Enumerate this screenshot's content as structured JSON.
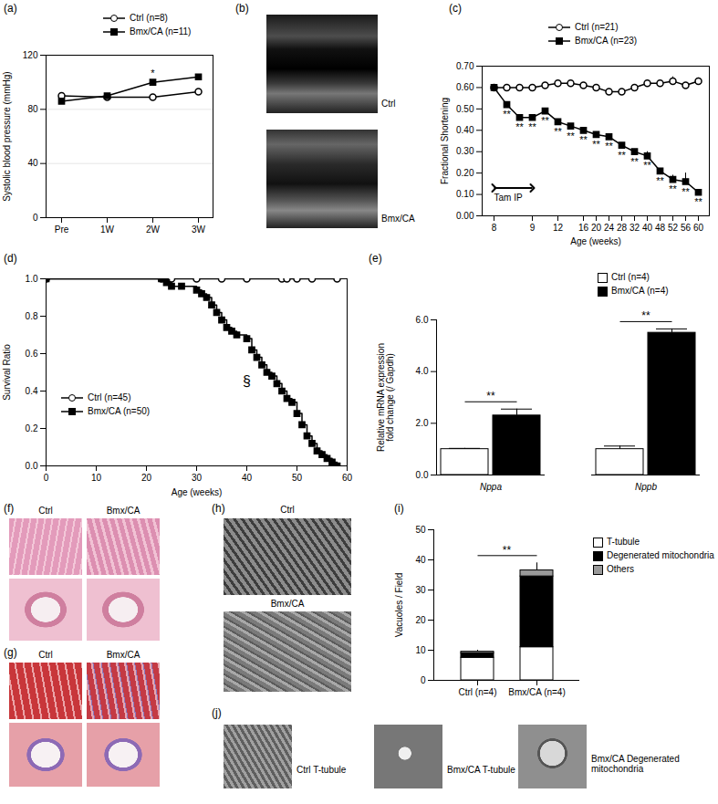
{
  "chart_data": [
    {
      "panel": "(a)",
      "type": "line",
      "y_label": "Systolic blood pressure (mmHg)",
      "categories": [
        "Pre",
        "1W",
        "2W",
        "3W"
      ],
      "ylim": [
        0,
        120
      ],
      "yticks": [
        0,
        40,
        80,
        120
      ],
      "grid": true,
      "legend": "top",
      "series": [
        {
          "name": "Ctrl (n=8)",
          "color": "#000000",
          "marker": "open_circle",
          "values": [
            90,
            89,
            89,
            93
          ]
        },
        {
          "name": "Bmx/CA (n=11)",
          "color": "#000000",
          "marker": "filled_square",
          "values": [
            86,
            90,
            100,
            104
          ],
          "significance": [
            null,
            null,
            "*",
            null
          ]
        }
      ]
    },
    {
      "panel": "(c)",
      "type": "line",
      "y_label": "Fractional Shortening",
      "x_label": "Age (weeks)",
      "categories": [
        "8",
        null,
        null,
        "9",
        null,
        "12",
        null,
        "16",
        "20",
        "24",
        "28",
        "32",
        "40",
        "48",
        "52",
        "56",
        "60"
      ],
      "ylim": [
        0,
        0.7
      ],
      "yticks": [
        0,
        0.1,
        0.2,
        0.3,
        0.4,
        0.5,
        0.6,
        0.7
      ],
      "legend": "top",
      "annotations": [
        {
          "text": "Tam IP",
          "x": [
            "8",
            "9"
          ],
          "y": 0.13
        }
      ],
      "series": [
        {
          "name": "Ctrl (n=21)",
          "color": "#000000",
          "marker": "open_circle",
          "values": [
            0.6,
            0.6,
            0.6,
            0.6,
            0.61,
            0.62,
            0.62,
            0.61,
            0.6,
            0.58,
            0.58,
            0.6,
            0.62,
            0.62,
            0.63,
            0.61,
            0.63
          ],
          "errors": [
            0.01,
            0.005,
            0.005,
            0.005,
            0.01,
            0.01,
            0.005,
            0.01,
            0.005,
            0.005,
            0.005,
            0.01,
            0.01,
            0.01,
            0.02,
            0.01,
            0.015
          ]
        },
        {
          "name": "Bmx/CA (n=23)",
          "color": "#000000",
          "marker": "filled_square",
          "values": [
            0.6,
            0.52,
            0.46,
            0.46,
            0.49,
            0.44,
            0.42,
            0.4,
            0.38,
            0.37,
            0.33,
            0.3,
            0.28,
            0.21,
            0.17,
            0.16,
            0.11
          ],
          "errors": [
            0.01,
            0.01,
            0.01,
            0.01,
            0.01,
            0.01,
            0.01,
            0.01,
            0.01,
            0.01,
            0.01,
            0.01,
            0.02,
            0.01,
            0.02,
            0.04,
            0.01
          ],
          "significance": [
            null,
            "**",
            "**",
            "**",
            "**",
            "**",
            "**",
            "**",
            "**",
            "**",
            "**",
            "**",
            "**",
            "**",
            "**",
            "**",
            "**"
          ]
        }
      ]
    },
    {
      "panel": "(d)",
      "type": "line",
      "line_style": "step",
      "y_label": "Survival Ratio",
      "x_label": "Age (weeks)",
      "xlim": [
        0,
        60
      ],
      "xticks": [
        0,
        10,
        20,
        30,
        40,
        50,
        60
      ],
      "ylim": [
        0,
        1
      ],
      "yticks": [
        0,
        0.2,
        0.4,
        0.6,
        0.8,
        1
      ],
      "legend": "bottom-left",
      "annotations": [
        {
          "text": "§",
          "x": 40,
          "y": 0.45
        }
      ],
      "series": [
        {
          "name": "Ctrl (n=45)",
          "color": "#000000",
          "marker": "open_circle",
          "x": [
            0,
            23,
            25,
            30,
            35,
            40,
            47,
            48,
            50,
            53,
            58
          ],
          "values": [
            1,
            1,
            1,
            1,
            1,
            1,
            1,
            1,
            1,
            1,
            1
          ]
        },
        {
          "name": "Bmx/CA (n=50)",
          "color": "#000000",
          "marker": "filled_square",
          "x": [
            0,
            23,
            24,
            25,
            27,
            30,
            31,
            32,
            33,
            34,
            35,
            36,
            37,
            38,
            40,
            41,
            42,
            43,
            44,
            45,
            46,
            47,
            48,
            49,
            50,
            51,
            52,
            53,
            54,
            55,
            56,
            57,
            58
          ],
          "values": [
            1,
            1,
            0.98,
            0.96,
            0.96,
            0.94,
            0.92,
            0.9,
            0.86,
            0.82,
            0.78,
            0.74,
            0.72,
            0.7,
            0.68,
            0.62,
            0.58,
            0.54,
            0.5,
            0.48,
            0.44,
            0.4,
            0.36,
            0.34,
            0.28,
            0.22,
            0.16,
            0.12,
            0.08,
            0.06,
            0.04,
            0.02,
            0
          ]
        }
      ]
    },
    {
      "panel": "(e)",
      "type": "bar",
      "y_label": [
        "Relative mRNA expression",
        "fold change (/ Gapdh)"
      ],
      "categories": [
        "Nppa",
        "Nppb"
      ],
      "ylim": [
        0,
        6
      ],
      "yticks": [
        0,
        2,
        4,
        6
      ],
      "legend": "top-right",
      "significance": [
        "**",
        "**"
      ],
      "series": [
        {
          "name": "Ctrl (n=4)",
          "color": "#ffffff",
          "values": [
            1,
            1
          ],
          "errors": [
            0.03,
            0.12
          ]
        },
        {
          "name": "Bmx/CA (n=4)",
          "color": "#000000",
          "values": [
            2.3,
            5.5
          ],
          "errors": [
            0.25,
            0.15
          ]
        }
      ]
    },
    {
      "panel": "(i)",
      "type": "bar",
      "stacked": true,
      "y_label": "Vacuoles / Field",
      "categories": [
        "Ctrl (n=4)",
        "Bmx/CA (n=4)"
      ],
      "ylim": [
        0,
        50
      ],
      "yticks": [
        0,
        10,
        20,
        30,
        40,
        50
      ],
      "legend": "right",
      "significance": "**",
      "errors": [
        0.5,
        2.5
      ],
      "series": [
        {
          "name": "T-tubule",
          "color": "#ffffff",
          "values": [
            7.5,
            11
          ]
        },
        {
          "name": "Degenerated mitochondria",
          "color": "#000000",
          "values": [
            1.5,
            23.5
          ]
        },
        {
          "name": "Others",
          "color": "#999999",
          "values": [
            0.5,
            2
          ]
        }
      ]
    }
  ],
  "images": [
    {
      "panel": "(b)",
      "labels": [
        "Ctrl",
        "Bmx/CA"
      ]
    },
    {
      "panel": "(f)",
      "labels": [
        "Ctrl",
        "Bmx/CA"
      ]
    },
    {
      "panel": "(g)",
      "labels": [
        "Ctrl",
        "Bmx/CA"
      ]
    },
    {
      "panel": "(h)",
      "labels": [
        "Ctrl",
        "Bmx/CA"
      ]
    },
    {
      "panel": "(j)",
      "labels": [
        "Ctrl T-tubule",
        "Bmx/CA T-tubule",
        "Bmx/CA Degenerated mitochondria"
      ]
    }
  ]
}
